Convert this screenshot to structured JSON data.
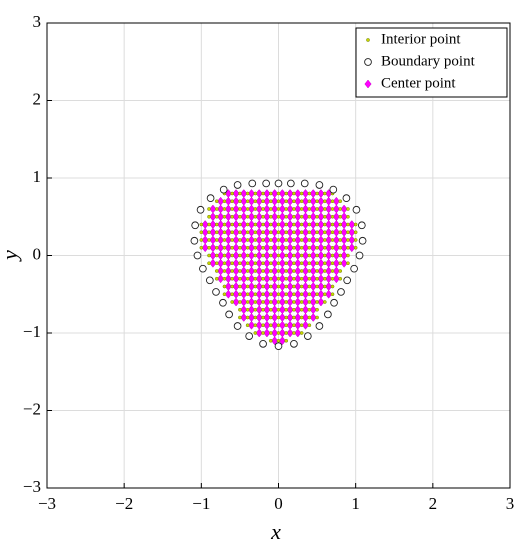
{
  "chart_data": {
    "type": "scatter",
    "x_label": "x",
    "y_label": "y",
    "xlim": [
      -3,
      3
    ],
    "ylim": [
      -3,
      3
    ],
    "xticks": [
      {
        "value": -3,
        "label": "−3"
      },
      {
        "value": -2,
        "label": "−2"
      },
      {
        "value": -1,
        "label": "−1"
      },
      0,
      1,
      2,
      3
    ],
    "yticks": [
      {
        "value": -3,
        "label": "−3"
      },
      {
        "value": -2,
        "label": "−2"
      },
      {
        "value": -1,
        "label": "−1"
      },
      0,
      1,
      2,
      3
    ],
    "grid": true,
    "legend": "upper right",
    "series": [
      {
        "name": "Interior point",
        "color": "#c8d400",
        "rows": [
          {
            "y": 0.8,
            "x": [
              -0.7,
              -0.6,
              -0.5,
              -0.4,
              -0.3,
              -0.2,
              -0.1,
              0,
              0.1,
              0.2,
              0.3,
              0.4,
              0.5,
              0.6,
              0.7
            ]
          },
          {
            "y": 0.7,
            "x": [
              -0.8,
              -0.7,
              -0.6,
              -0.5,
              -0.4,
              -0.3,
              -0.2,
              -0.1,
              0,
              0.1,
              0.2,
              0.3,
              0.4,
              0.5,
              0.6,
              0.7,
              0.8
            ]
          },
          {
            "y": 0.6,
            "x": [
              -0.9,
              -0.8,
              -0.7,
              -0.6,
              -0.5,
              -0.4,
              -0.3,
              -0.2,
              -0.1,
              0,
              0.1,
              0.2,
              0.3,
              0.4,
              0.5,
              0.6,
              0.7,
              0.8,
              0.9
            ]
          },
          {
            "y": 0.5,
            "x": [
              -0.9,
              -0.8,
              -0.7,
              -0.6,
              -0.5,
              -0.4,
              -0.3,
              -0.2,
              -0.1,
              0,
              0.1,
              0.2,
              0.3,
              0.4,
              0.5,
              0.6,
              0.7,
              0.8,
              0.9
            ]
          },
          {
            "y": 0.4,
            "x": [
              -1,
              -0.9,
              -0.8,
              -0.7,
              -0.6,
              -0.5,
              -0.4,
              -0.3,
              -0.2,
              -0.1,
              0,
              0.1,
              0.2,
              0.3,
              0.4,
              0.5,
              0.6,
              0.7,
              0.8,
              0.9,
              1
            ]
          },
          {
            "y": 0.3,
            "x": [
              -1,
              -0.9,
              -0.8,
              -0.7,
              -0.6,
              -0.5,
              -0.4,
              -0.3,
              -0.2,
              -0.1,
              0,
              0.1,
              0.2,
              0.3,
              0.4,
              0.5,
              0.6,
              0.7,
              0.8,
              0.9,
              1
            ]
          },
          {
            "y": 0.2,
            "x": [
              -1,
              -0.9,
              -0.8,
              -0.7,
              -0.6,
              -0.5,
              -0.4,
              -0.3,
              -0.2,
              -0.1,
              0,
              0.1,
              0.2,
              0.3,
              0.4,
              0.5,
              0.6,
              0.7,
              0.8,
              0.9,
              1
            ]
          },
          {
            "y": 0.1,
            "x": [
              -1,
              -0.9,
              -0.8,
              -0.7,
              -0.6,
              -0.5,
              -0.4,
              -0.3,
              -0.2,
              -0.1,
              0,
              0.1,
              0.2,
              0.3,
              0.4,
              0.5,
              0.6,
              0.7,
              0.8,
              0.9,
              1
            ]
          },
          {
            "y": 0,
            "x": [
              -0.9,
              -0.8,
              -0.7,
              -0.6,
              -0.5,
              -0.4,
              -0.3,
              -0.2,
              -0.1,
              0,
              0.1,
              0.2,
              0.3,
              0.4,
              0.5,
              0.6,
              0.7,
              0.8,
              0.9
            ]
          },
          {
            "y": -0.1,
            "x": [
              -0.9,
              -0.8,
              -0.7,
              -0.6,
              -0.5,
              -0.4,
              -0.3,
              -0.2,
              -0.1,
              0,
              0.1,
              0.2,
              0.3,
              0.4,
              0.5,
              0.6,
              0.7,
              0.8,
              0.9
            ]
          },
          {
            "y": -0.2,
            "x": [
              -0.8,
              -0.7,
              -0.6,
              -0.5,
              -0.4,
              -0.3,
              -0.2,
              -0.1,
              0,
              0.1,
              0.2,
              0.3,
              0.4,
              0.5,
              0.6,
              0.7,
              0.8
            ]
          },
          {
            "y": -0.3,
            "x": [
              -0.8,
              -0.7,
              -0.6,
              -0.5,
              -0.4,
              -0.3,
              -0.2,
              -0.1,
              0,
              0.1,
              0.2,
              0.3,
              0.4,
              0.5,
              0.6,
              0.7,
              0.8
            ]
          },
          {
            "y": -0.4,
            "x": [
              -0.7,
              -0.6,
              -0.5,
              -0.4,
              -0.3,
              -0.2,
              -0.1,
              0,
              0.1,
              0.2,
              0.3,
              0.4,
              0.5,
              0.6,
              0.7
            ]
          },
          {
            "y": -0.5,
            "x": [
              -0.7,
              -0.6,
              -0.5,
              -0.4,
              -0.3,
              -0.2,
              -0.1,
              0,
              0.1,
              0.2,
              0.3,
              0.4,
              0.5,
              0.6,
              0.7
            ]
          },
          {
            "y": -0.6,
            "x": [
              -0.6,
              -0.5,
              -0.4,
              -0.3,
              -0.2,
              -0.1,
              0,
              0.1,
              0.2,
              0.3,
              0.4,
              0.5,
              0.6
            ]
          },
          {
            "y": -0.7,
            "x": [
              -0.5,
              -0.4,
              -0.3,
              -0.2,
              -0.1,
              0,
              0.1,
              0.2,
              0.3,
              0.4,
              0.5
            ]
          },
          {
            "y": -0.8,
            "x": [
              -0.5,
              -0.4,
              -0.3,
              -0.2,
              -0.1,
              0,
              0.1,
              0.2,
              0.3,
              0.4,
              0.5
            ]
          },
          {
            "y": -0.9,
            "x": [
              -0.4,
              -0.3,
              -0.2,
              -0.1,
              0,
              0.1,
              0.2,
              0.3,
              0.4
            ]
          },
          {
            "y": -1,
            "x": [
              -0.3,
              -0.2,
              -0.1,
              0,
              0.1,
              0.2,
              0.3
            ]
          },
          {
            "y": -1.1,
            "x": [
              -0.1,
              0,
              0.1
            ]
          }
        ]
      },
      {
        "name": "Boundary point",
        "color": "#ffffff",
        "x": [
          1.05,
          1.09,
          1.08,
          1.01,
          0.88,
          0.71,
          0.53,
          0.34,
          0.16,
          0,
          -0.16,
          -0.34,
          -0.53,
          -0.71,
          -0.88,
          -1.01,
          -1.08,
          -1.09,
          -1.05,
          -0.98,
          -0.89,
          -0.81,
          -0.72,
          -0.64,
          -0.53,
          -0.38,
          -0.2,
          0,
          0.2,
          0.38,
          0.53,
          0.64,
          0.72,
          0.81,
          0.89,
          0.98
        ],
        "y": [
          0,
          0.19,
          0.39,
          0.59,
          0.74,
          0.85,
          0.91,
          0.93,
          0.93,
          0.93,
          0.93,
          0.93,
          0.91,
          0.85,
          0.74,
          0.59,
          0.39,
          0.19,
          0,
          -0.17,
          -0.32,
          -0.47,
          -0.61,
          -0.76,
          -0.91,
          -1.04,
          -1.14,
          -1.17,
          -1.14,
          -1.04,
          -0.91,
          -0.76,
          -0.61,
          -0.47,
          -0.32,
          -0.17
        ]
      },
      {
        "name": "Center point",
        "color": "#ff00ff",
        "rows": [
          {
            "y": 0.8,
            "x": [
              -0.65,
              -0.55,
              -0.45,
              -0.35,
              -0.25,
              -0.15,
              -0.05,
              0.05,
              0.15,
              0.25,
              0.35,
              0.45,
              0.55,
              0.65
            ]
          },
          {
            "y": 0.7,
            "x": [
              -0.75,
              -0.65,
              -0.55,
              -0.45,
              -0.35,
              -0.25,
              -0.15,
              -0.05,
              0.05,
              0.15,
              0.25,
              0.35,
              0.45,
              0.55,
              0.65,
              0.75
            ]
          },
          {
            "y": 0.6,
            "x": [
              -0.85,
              -0.75,
              -0.65,
              -0.55,
              -0.45,
              -0.35,
              -0.25,
              -0.15,
              -0.05,
              0.05,
              0.15,
              0.25,
              0.35,
              0.45,
              0.55,
              0.65,
              0.75,
              0.85
            ]
          },
          {
            "y": 0.5,
            "x": [
              -0.85,
              -0.75,
              -0.65,
              -0.55,
              -0.45,
              -0.35,
              -0.25,
              -0.15,
              -0.05,
              0.05,
              0.15,
              0.25,
              0.35,
              0.45,
              0.55,
              0.65,
              0.75,
              0.85
            ]
          },
          {
            "y": 0.4,
            "x": [
              -0.95,
              -0.85,
              -0.75,
              -0.65,
              -0.55,
              -0.45,
              -0.35,
              -0.25,
              -0.15,
              -0.05,
              0.05,
              0.15,
              0.25,
              0.35,
              0.45,
              0.55,
              0.65,
              0.75,
              0.85,
              0.95
            ]
          },
          {
            "y": 0.3,
            "x": [
              -0.95,
              -0.85,
              -0.75,
              -0.65,
              -0.55,
              -0.45,
              -0.35,
              -0.25,
              -0.15,
              -0.05,
              0.05,
              0.15,
              0.25,
              0.35,
              0.45,
              0.55,
              0.65,
              0.75,
              0.85,
              0.95
            ]
          },
          {
            "y": 0.2,
            "x": [
              -0.95,
              -0.85,
              -0.75,
              -0.65,
              -0.55,
              -0.45,
              -0.35,
              -0.25,
              -0.15,
              -0.05,
              0.05,
              0.15,
              0.25,
              0.35,
              0.45,
              0.55,
              0.65,
              0.75,
              0.85,
              0.95
            ]
          },
          {
            "y": 0.1,
            "x": [
              -0.95,
              -0.85,
              -0.75,
              -0.65,
              -0.55,
              -0.45,
              -0.35,
              -0.25,
              -0.15,
              -0.05,
              0.05,
              0.15,
              0.25,
              0.35,
              0.45,
              0.55,
              0.65,
              0.75,
              0.85,
              0.95
            ]
          },
          {
            "y": 0,
            "x": [
              -0.85,
              -0.75,
              -0.65,
              -0.55,
              -0.45,
              -0.35,
              -0.25,
              -0.15,
              -0.05,
              0.05,
              0.15,
              0.25,
              0.35,
              0.45,
              0.55,
              0.65,
              0.75,
              0.85
            ]
          },
          {
            "y": -0.1,
            "x": [
              -0.85,
              -0.75,
              -0.65,
              -0.55,
              -0.45,
              -0.35,
              -0.25,
              -0.15,
              -0.05,
              0.05,
              0.15,
              0.25,
              0.35,
              0.45,
              0.55,
              0.65,
              0.75,
              0.85
            ]
          },
          {
            "y": -0.2,
            "x": [
              -0.75,
              -0.65,
              -0.55,
              -0.45,
              -0.35,
              -0.25,
              -0.15,
              -0.05,
              0.05,
              0.15,
              0.25,
              0.35,
              0.45,
              0.55,
              0.65,
              0.75
            ]
          },
          {
            "y": -0.3,
            "x": [
              -0.75,
              -0.65,
              -0.55,
              -0.45,
              -0.35,
              -0.25,
              -0.15,
              -0.05,
              0.05,
              0.15,
              0.25,
              0.35,
              0.45,
              0.55,
              0.65,
              0.75
            ]
          },
          {
            "y": -0.4,
            "x": [
              -0.65,
              -0.55,
              -0.45,
              -0.35,
              -0.25,
              -0.15,
              -0.05,
              0.05,
              0.15,
              0.25,
              0.35,
              0.45,
              0.55,
              0.65
            ]
          },
          {
            "y": -0.5,
            "x": [
              -0.65,
              -0.55,
              -0.45,
              -0.35,
              -0.25,
              -0.15,
              -0.05,
              0.05,
              0.15,
              0.25,
              0.35,
              0.45,
              0.55,
              0.65
            ]
          },
          {
            "y": -0.6,
            "x": [
              -0.55,
              -0.45,
              -0.35,
              -0.25,
              -0.15,
              -0.05,
              0.05,
              0.15,
              0.25,
              0.35,
              0.45,
              0.55
            ]
          },
          {
            "y": -0.7,
            "x": [
              -0.45,
              -0.35,
              -0.25,
              -0.15,
              -0.05,
              0.05,
              0.15,
              0.25,
              0.35,
              0.45
            ]
          },
          {
            "y": -0.8,
            "x": [
              -0.45,
              -0.35,
              -0.25,
              -0.15,
              -0.05,
              0.05,
              0.15,
              0.25,
              0.35,
              0.45
            ]
          },
          {
            "y": -0.9,
            "x": [
              -0.35,
              -0.25,
              -0.15,
              -0.05,
              0.05,
              0.15,
              0.25,
              0.35
            ]
          },
          {
            "y": -1,
            "x": [
              -0.25,
              -0.15,
              -0.05,
              0.05,
              0.15,
              0.25
            ]
          },
          {
            "y": -1.1,
            "x": [
              -0.05,
              0.05
            ]
          }
        ]
      }
    ]
  }
}
